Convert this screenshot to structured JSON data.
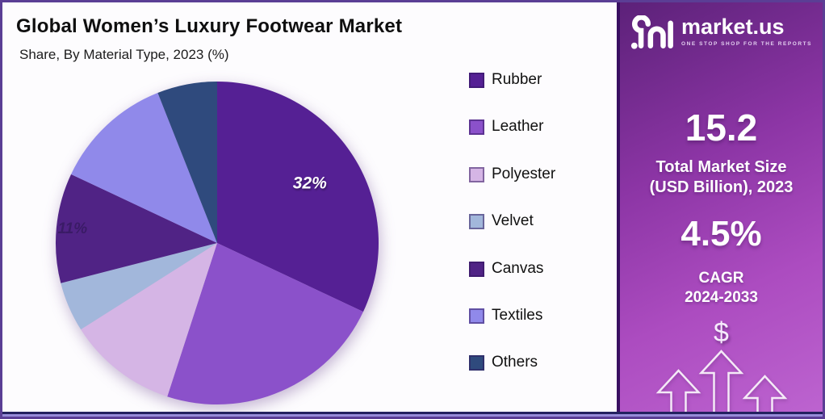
{
  "header": {
    "title": "Global Women’s Luxury Footwear Market",
    "subtitle": "Share, By Material Type, 2023 (%)"
  },
  "chart_data": {
    "type": "pie",
    "title": "Global Women’s Luxury Footwear Market",
    "subtitle": "Share, By Material Type, 2023 (%)",
    "unit": "%",
    "start_angle_deg": 0,
    "direction": "clockwise",
    "legend_position": "right",
    "segments": [
      {
        "name": "Rubber",
        "value": 32,
        "color": "#552094",
        "slice_label": "32%",
        "slice_label_color": "#FFFFFF",
        "label_radius": 0.68,
        "label_size": 21
      },
      {
        "name": "Leather",
        "value": 23,
        "color": "#8B51CA",
        "slice_label": "",
        "slice_label_color": "",
        "label_radius": 0,
        "label_size": 0
      },
      {
        "name": "Polyester",
        "value": 11,
        "color": "#D5B5E5",
        "slice_label": "",
        "slice_label_color": "",
        "label_radius": 0,
        "label_size": 0
      },
      {
        "name": "Velvet",
        "value": 5,
        "color": "#A2B7DB",
        "slice_label": "",
        "slice_label_color": "",
        "label_radius": 0,
        "label_size": 0
      },
      {
        "name": "Canvas",
        "value": 11,
        "color": "#502385",
        "slice_label": "11%",
        "slice_label_color": "#3A1B66",
        "label_radius": 0.9,
        "label_size": 19
      },
      {
        "name": "Textiles",
        "value": 12,
        "color": "#9089EA",
        "slice_label": "",
        "slice_label_color": "",
        "label_radius": 0,
        "label_size": 0
      },
      {
        "name": "Others",
        "value": 6,
        "color": "#2F4A7D",
        "slice_label": "",
        "slice_label_color": "",
        "label_radius": 0,
        "label_size": 0
      }
    ]
  },
  "sidebar": {
    "logo": {
      "brand": "market.us",
      "tagline": "ONE STOP SHOP FOR THE REPORTS"
    },
    "market_size": {
      "value": "15.2",
      "caption_line1": "Total Market Size",
      "caption_line2": "(USD Billion), 2023"
    },
    "cagr": {
      "value": "4.5%",
      "caption_line1": "CAGR",
      "caption_line2": "2024-2033"
    },
    "dollar_symbol": "$"
  },
  "colors": {
    "frame_border": "#5B3E95",
    "sidebar_gradient_top": "#5C2179",
    "sidebar_gradient_bottom": "#BD64D0",
    "sidebar_divider": "#390F61",
    "bottom_line": "#23215F",
    "bottom_strip": "#978CD8",
    "chart_background": "#FDFCFE"
  }
}
